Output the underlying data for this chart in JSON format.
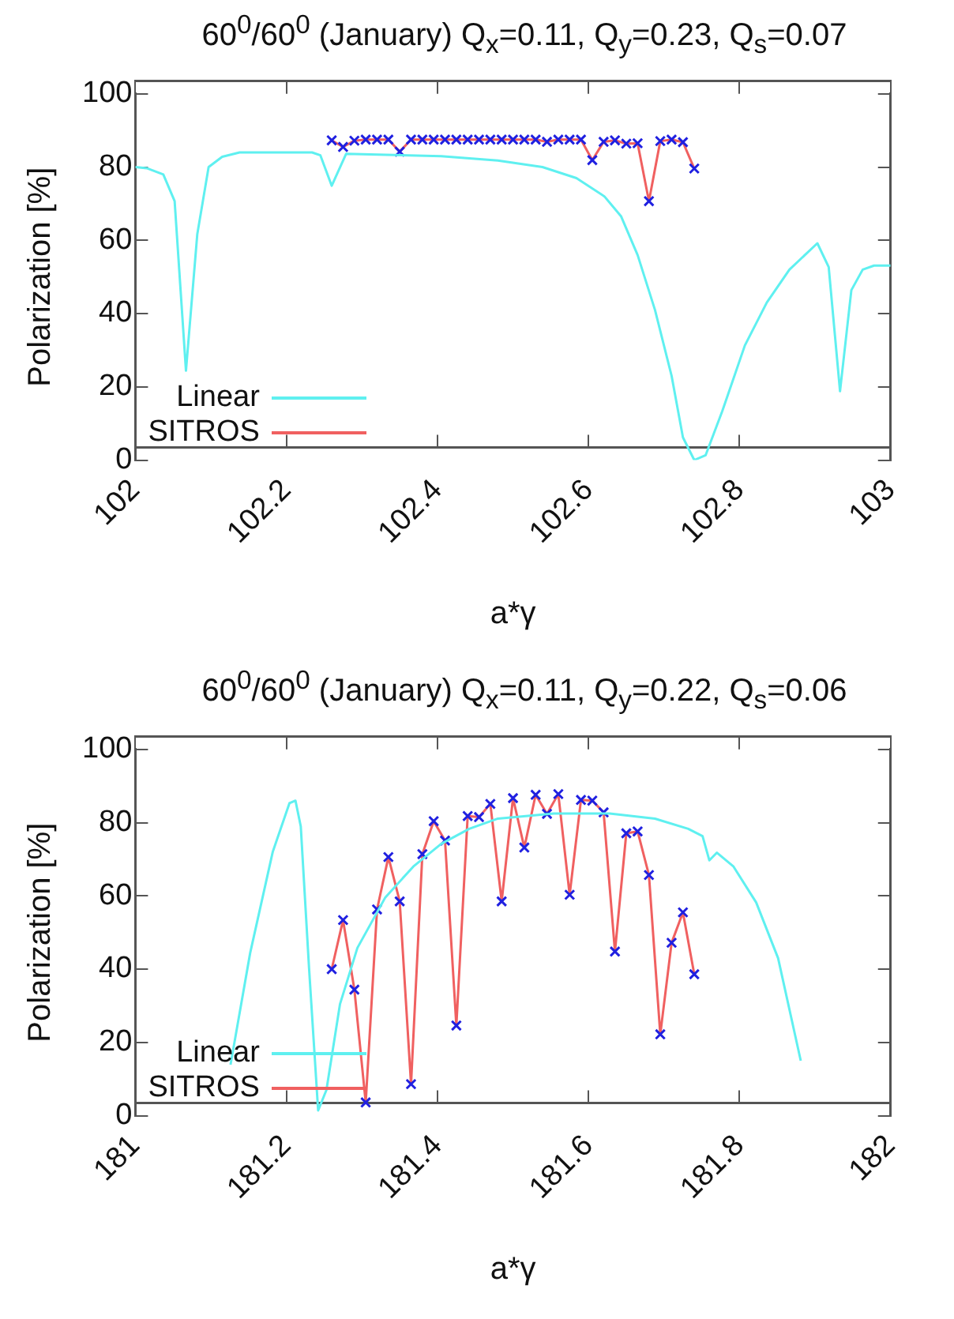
{
  "chart_data": [
    {
      "type": "line",
      "title": "60$^{0}$/60$^{0}$ (January) Q$_{x}$=0.11, Q$_{y}$=0.23, Q$_{s}$=0.07",
      "xlabel": "a*γ",
      "ylabel": "Polarization [%]",
      "xlim": [
        102,
        103
      ],
      "xticks": [
        102,
        102.2,
        102.4,
        102.6,
        102.8,
        103
      ],
      "ylim": [
        0,
        100
      ],
      "yticks": [
        0,
        20,
        40,
        60,
        80,
        100
      ],
      "grid": false,
      "legend": "bottom left",
      "series": [
        {
          "name": "Linear",
          "color": "#5ff0f0",
          "marker": "none",
          "x": [
            102.0,
            102.015,
            102.037,
            102.052,
            102.067,
            102.082,
            102.097,
            102.115,
            102.138,
            102.234,
            102.245,
            102.26,
            102.279,
            102.405,
            102.48,
            102.539,
            102.584,
            102.621,
            102.643,
            102.665,
            102.688,
            102.71,
            102.725,
            102.74,
            102.755,
            102.777,
            102.807,
            102.836,
            102.866,
            102.903,
            102.918,
            102.933,
            102.948,
            102.963,
            102.978,
            103.0
          ],
          "values": [
            80,
            79.7,
            78,
            70.7,
            24.4,
            61.7,
            80,
            82.8,
            84,
            84,
            83.2,
            74.9,
            83.6,
            83,
            81.8,
            80,
            77,
            72,
            66.6,
            56,
            41,
            23,
            6.2,
            0,
            1.3,
            13.3,
            31.3,
            43,
            52,
            59.2,
            52.7,
            18.8,
            46.4,
            52,
            53.1,
            53.1
          ]
        },
        {
          "name": "SITROS",
          "color": "#f06060",
          "marker": "cross",
          "colors": [
            "#2020e0",
            "#2020e0",
            "#2020e0",
            "#2020e0",
            "#2020e0",
            "#2020e0",
            "#2020e0",
            "#2020e0",
            "#2020e0",
            "#2020e0",
            "#2020e0",
            "#2020e0",
            "#2020e0",
            "#2020e0",
            "#2020e0",
            "#2020e0",
            "#2020e0",
            "#2020e0",
            "#2020e0",
            "#2020e0",
            "#2020e0",
            "#2020e0",
            "#2020e0",
            "#2020e0",
            "#2020e0",
            "#2020e0",
            "#2020e0",
            "#2020e0",
            "#2020e0",
            "#2020e0",
            "#2020e0",
            "#2020e0",
            "#2020e0"
          ],
          "x": [
            102.26,
            102.275,
            102.29,
            102.305,
            102.32,
            102.335,
            102.35,
            102.365,
            102.38,
            102.395,
            102.41,
            102.425,
            102.44,
            102.455,
            102.47,
            102.485,
            102.5,
            102.515,
            102.53,
            102.545,
            102.56,
            102.575,
            102.59,
            102.605,
            102.62,
            102.635,
            102.65,
            102.665,
            102.68,
            102.695,
            102.71,
            102.725,
            102.74
          ],
          "values": [
            87.3,
            85.5,
            87.2,
            87.5,
            87.5,
            87.5,
            84.2,
            87.5,
            87.5,
            87.5,
            87.5,
            87.5,
            87.5,
            87.5,
            87.5,
            87.5,
            87.5,
            87.5,
            87.5,
            86.9,
            87.5,
            87.5,
            87.5,
            81.9,
            86.9,
            87.3,
            86.4,
            86.5,
            70.7,
            87.1,
            87.5,
            86.8,
            79.6
          ]
        }
      ]
    },
    {
      "type": "line",
      "title": "60$^{0}$/60$^{0}$ (January) Q$_{x}$=0.11, Q$_{y}$=0.22, Q$_{s}$=0.06",
      "xlabel": "a*γ",
      "ylabel": "Polarization [%]",
      "xlim": [
        181,
        182
      ],
      "xticks": [
        181,
        181.2,
        181.4,
        181.6,
        181.8,
        182
      ],
      "ylim": [
        0,
        100
      ],
      "yticks": [
        0,
        20,
        40,
        60,
        80,
        100
      ],
      "grid": false,
      "legend": "bottom left",
      "series": [
        {
          "name": "Linear",
          "color": "#5ff0f0",
          "marker": "none",
          "x": [
            181.126,
            181.152,
            181.182,
            181.204,
            181.212,
            181.219,
            181.23,
            181.242,
            181.253,
            181.271,
            181.294,
            181.331,
            181.368,
            181.405,
            181.442,
            181.48,
            181.554,
            181.628,
            181.688,
            181.732,
            181.751,
            181.76,
            181.77,
            181.792,
            181.822,
            181.851,
            181.881
          ],
          "values": [
            13.9,
            44.4,
            72.1,
            85.3,
            86,
            79,
            40.2,
            1.4,
            7,
            30.5,
            45.8,
            59.6,
            68,
            74.2,
            78.3,
            81.1,
            82.5,
            82.5,
            81.1,
            78.3,
            76.3,
            69.7,
            71.8,
            68,
            58.2,
            43,
            15
          ]
        },
        {
          "name": "SITROS",
          "color": "#f06060",
          "marker": "cross",
          "colors": [
            "#2020e0",
            "#2020e0",
            "#2020e0",
            "#2020e0",
            "#2020e0",
            "#2020e0",
            "#2020e0",
            "#2020e0",
            "#2020e0",
            "#2020e0",
            "#2020e0",
            "#2020e0",
            "#2020e0",
            "#2020e0",
            "#2020e0",
            "#2020e0",
            "#2020e0",
            "#2020e0",
            "#2020e0",
            "#2020e0",
            "#2020e0",
            "#2020e0",
            "#2020e0",
            "#2020e0",
            "#2020e0",
            "#2020e0",
            "#2020e0",
            "#2020e0",
            "#2020e0",
            "#2020e0",
            "#2020e0",
            "#2020e0",
            "#2020e0"
          ],
          "x": [
            181.26,
            181.275,
            181.29,
            181.305,
            181.32,
            181.335,
            181.35,
            181.365,
            181.38,
            181.395,
            181.41,
            181.425,
            181.44,
            181.455,
            181.47,
            181.485,
            181.5,
            181.515,
            181.53,
            181.545,
            181.56,
            181.575,
            181.59,
            181.605,
            181.62,
            181.635,
            181.65,
            181.665,
            181.68,
            181.695,
            181.71,
            181.725,
            181.74
          ],
          "values": [
            40,
            53.4,
            34.4,
            3.6,
            56.3,
            70.6,
            58.5,
            8.6,
            71.4,
            80.4,
            75.1,
            24.6,
            81.8,
            81.5,
            85.1,
            58.5,
            86.7,
            73.2,
            87.6,
            82.4,
            87.8,
            60.3,
            86.2,
            86,
            82.8,
            44.8,
            77.1,
            77.6,
            65.7,
            22.2,
            47.2,
            55.5,
            38.6
          ]
        }
      ]
    }
  ]
}
